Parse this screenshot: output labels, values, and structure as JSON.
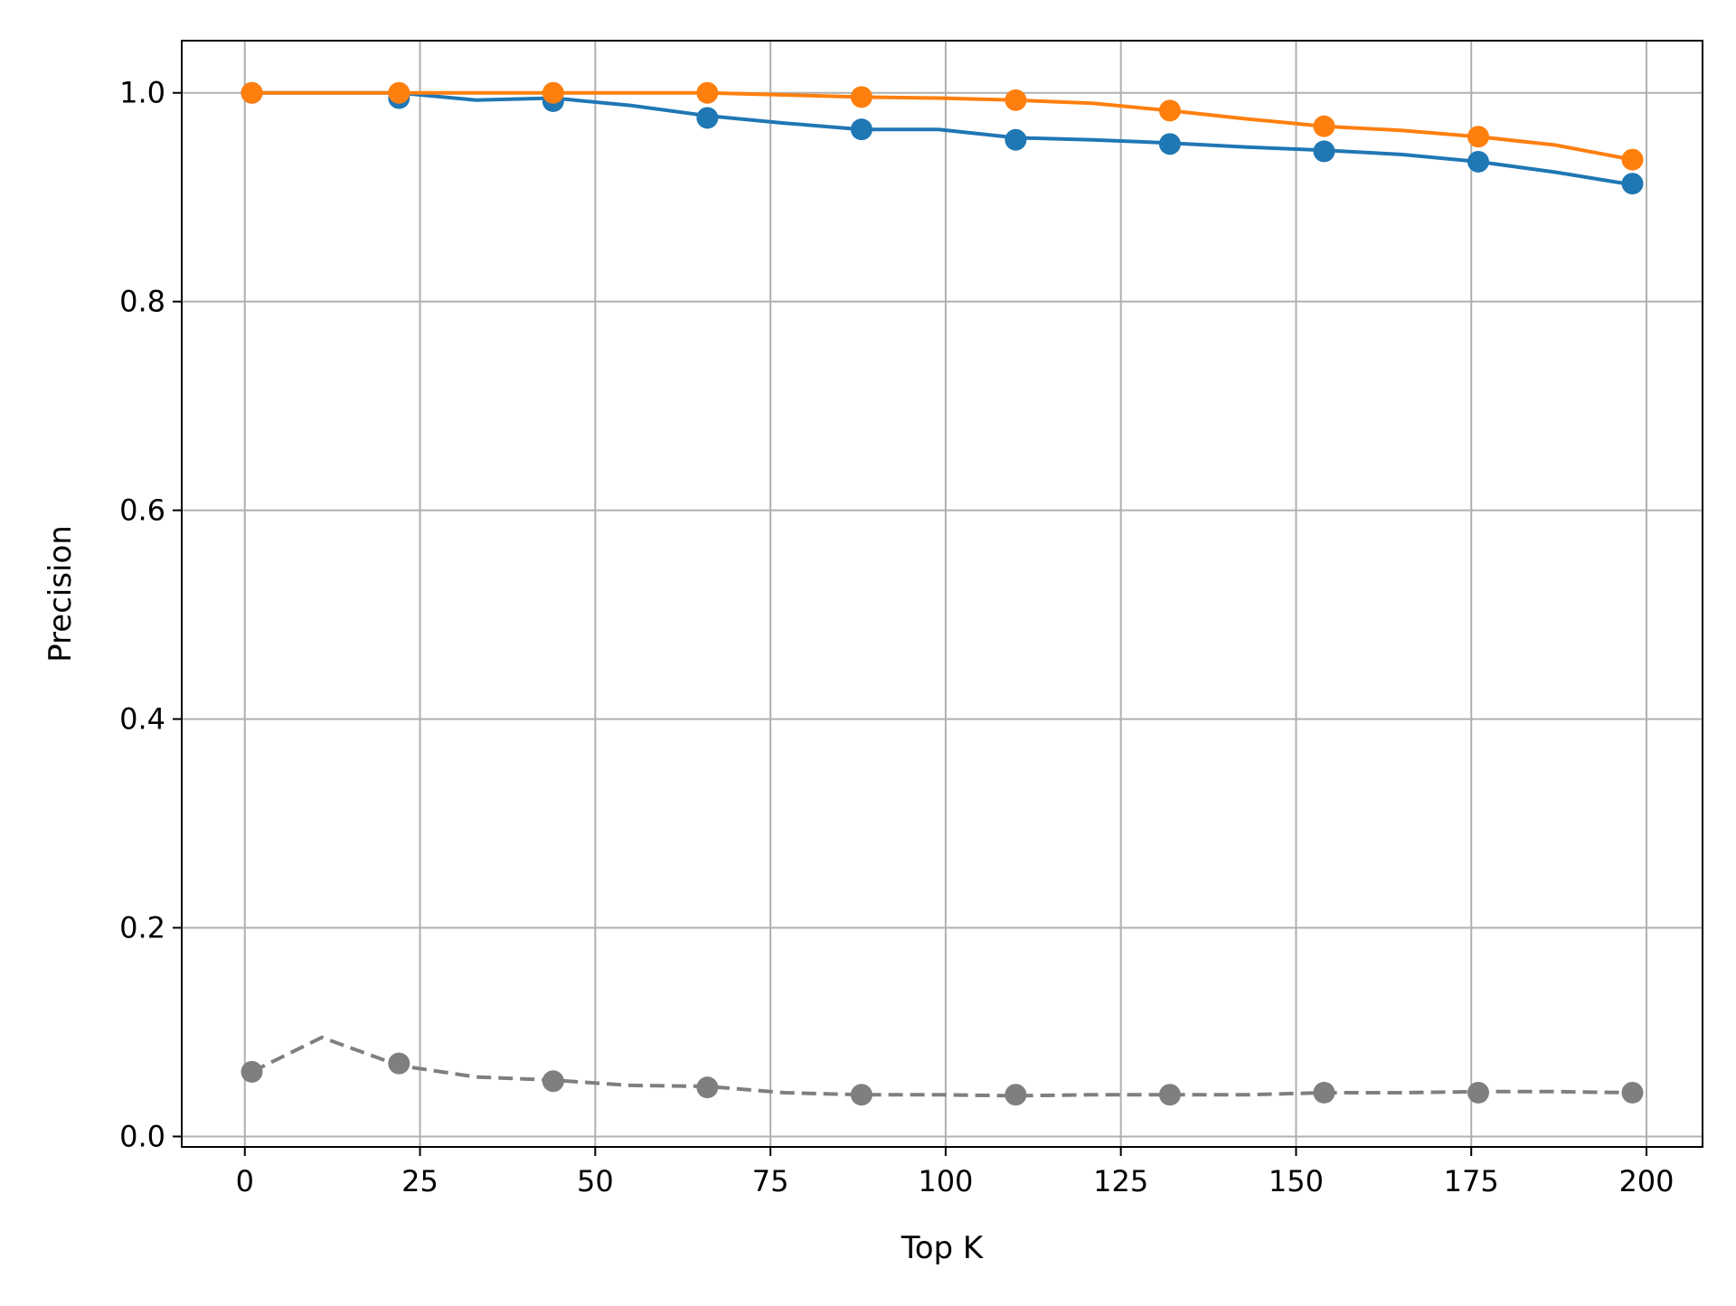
{
  "chart_data": {
    "type": "line",
    "title": "",
    "xlabel": "Top K",
    "ylabel": "Precision",
    "xlim": [
      -9,
      208
    ],
    "ylim": [
      -0.01,
      1.05
    ],
    "x_ticks": [
      0,
      25,
      50,
      75,
      100,
      125,
      150,
      175,
      200
    ],
    "y_ticks": [
      0.0,
      0.2,
      0.4,
      0.6,
      0.8,
      1.0
    ],
    "x_tick_labels": [
      "0",
      "25",
      "50",
      "75",
      "100",
      "125",
      "150",
      "175",
      "200"
    ],
    "y_tick_labels": [
      "0.0",
      "0.2",
      "0.4",
      "0.6",
      "0.8",
      "1.0"
    ],
    "grid": true,
    "legend": false,
    "series": [
      {
        "color": "#1f77b4",
        "line_style": "solid",
        "x": [
          1,
          11,
          22,
          33,
          44,
          55,
          66,
          77,
          88,
          99,
          110,
          121,
          132,
          143,
          154,
          165,
          176,
          187,
          198
        ],
        "y": [
          1.0,
          1.0,
          1.0,
          0.993,
          0.995,
          0.988,
          0.978,
          0.971,
          0.965,
          0.965,
          0.957,
          0.955,
          0.952,
          0.948,
          0.945,
          0.941,
          0.934,
          0.924,
          0.912
        ],
        "marker_x": [
          1,
          22,
          44,
          66,
          88,
          110,
          132,
          154,
          176,
          198
        ],
        "marker_y": [
          1.0,
          0.995,
          0.992,
          0.976,
          0.965,
          0.955,
          0.951,
          0.944,
          0.934,
          0.913
        ]
      },
      {
        "color": "#ff7f0e",
        "line_style": "solid",
        "x": [
          1,
          11,
          22,
          33,
          44,
          55,
          66,
          77,
          88,
          99,
          110,
          121,
          132,
          143,
          154,
          165,
          176,
          187,
          198
        ],
        "y": [
          1.0,
          1.0,
          1.0,
          1.0,
          1.0,
          1.0,
          1.0,
          0.998,
          0.996,
          0.995,
          0.993,
          0.99,
          0.983,
          0.975,
          0.968,
          0.964,
          0.958,
          0.95,
          0.936
        ],
        "marker_x": [
          1,
          22,
          44,
          66,
          88,
          110,
          132,
          154,
          176,
          198
        ],
        "marker_y": [
          1.0,
          1.0,
          1.0,
          1.0,
          0.996,
          0.993,
          0.983,
          0.968,
          0.958,
          0.936
        ]
      },
      {
        "color": "#7f7f7f",
        "line_style": "dashed",
        "x": [
          1,
          11,
          22,
          33,
          44,
          55,
          66,
          77,
          88,
          99,
          110,
          121,
          132,
          143,
          154,
          165,
          176,
          187,
          198
        ],
        "y": [
          0.062,
          0.095,
          0.068,
          0.057,
          0.054,
          0.049,
          0.048,
          0.042,
          0.04,
          0.04,
          0.039,
          0.04,
          0.04,
          0.04,
          0.042,
          0.042,
          0.043,
          0.043,
          0.042
        ],
        "marker_x": [
          1,
          22,
          44,
          66,
          88,
          110,
          132,
          154,
          176,
          198
        ],
        "marker_y": [
          0.062,
          0.07,
          0.053,
          0.047,
          0.04,
          0.04,
          0.04,
          0.042,
          0.042,
          0.042
        ]
      }
    ]
  }
}
